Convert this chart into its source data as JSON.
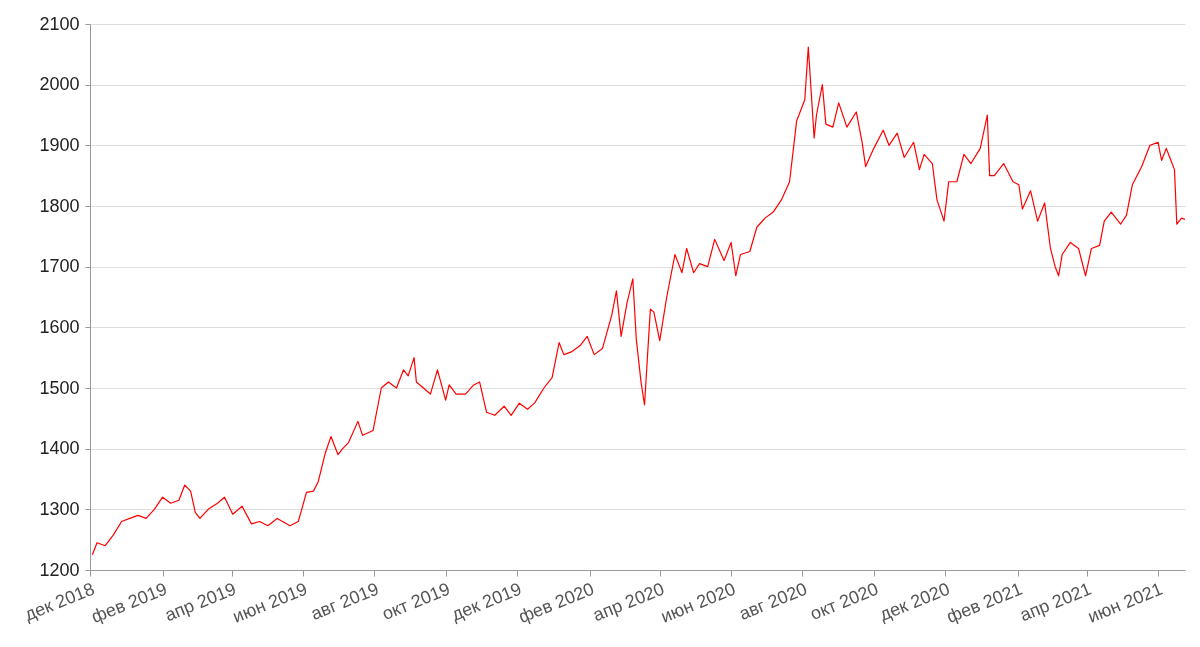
{
  "chart_data": {
    "type": "line",
    "xlim": [
      "2018-12-01",
      "2021-06-24"
    ],
    "ylim": [
      1200,
      2100
    ],
    "yticks": [
      1200,
      1300,
      1400,
      1500,
      1600,
      1700,
      1800,
      1900,
      2000,
      2100
    ],
    "xticks": [
      {
        "value": "2018-12-01",
        "label": "дек 2018"
      },
      {
        "value": "2019-02-01",
        "label": "фев 2019"
      },
      {
        "value": "2019-04-01",
        "label": "апр 2019"
      },
      {
        "value": "2019-06-01",
        "label": "июн 2019"
      },
      {
        "value": "2019-08-01",
        "label": "авг 2019"
      },
      {
        "value": "2019-10-01",
        "label": "окт 2019"
      },
      {
        "value": "2019-12-01",
        "label": "дек 2019"
      },
      {
        "value": "2020-02-01",
        "label": "фев 2020"
      },
      {
        "value": "2020-04-01",
        "label": "апр 2020"
      },
      {
        "value": "2020-06-01",
        "label": "июн 2020"
      },
      {
        "value": "2020-08-01",
        "label": "авг 2020"
      },
      {
        "value": "2020-10-01",
        "label": "окт 2020"
      },
      {
        "value": "2020-12-01",
        "label": "дек 2020"
      },
      {
        "value": "2021-02-01",
        "label": "фев 2021"
      },
      {
        "value": "2021-04-01",
        "label": "апр 2021"
      },
      {
        "value": "2021-06-01",
        "label": "июн 2021"
      }
    ],
    "grid": "y",
    "marker": "none",
    "line_style": "solid",
    "x": [
      "2018-12-03",
      "2018-12-07",
      "2018-12-14",
      "2018-12-21",
      "2018-12-28",
      "2019-01-04",
      "2019-01-11",
      "2019-01-18",
      "2019-01-25",
      "2019-02-01",
      "2019-02-08",
      "2019-02-15",
      "2019-02-20",
      "2019-02-25",
      "2019-03-01",
      "2019-03-05",
      "2019-03-12",
      "2019-03-20",
      "2019-03-26",
      "2019-04-02",
      "2019-04-10",
      "2019-04-18",
      "2019-04-25",
      "2019-05-02",
      "2019-05-10",
      "2019-05-21",
      "2019-05-28",
      "2019-05-31",
      "2019-06-04",
      "2019-06-10",
      "2019-06-14",
      "2019-06-20",
      "2019-06-25",
      "2019-07-01",
      "2019-07-05",
      "2019-07-10",
      "2019-07-18",
      "2019-07-22",
      "2019-07-31",
      "2019-08-07",
      "2019-08-13",
      "2019-08-20",
      "2019-08-26",
      "2019-08-30",
      "2019-09-04",
      "2019-09-06",
      "2019-09-12",
      "2019-09-18",
      "2019-09-24",
      "2019-10-01",
      "2019-10-04",
      "2019-10-10",
      "2019-10-18",
      "2019-10-25",
      "2019-10-30",
      "2019-11-05",
      "2019-11-12",
      "2019-11-20",
      "2019-11-26",
      "2019-12-03",
      "2019-12-10",
      "2019-12-16",
      "2019-12-24",
      "2019-12-31",
      "2020-01-06",
      "2020-01-10",
      "2020-01-17",
      "2020-01-24",
      "2020-01-30",
      "2020-02-05",
      "2020-02-12",
      "2020-02-20",
      "2020-02-24",
      "2020-02-28",
      "2020-03-04",
      "2020-03-09",
      "2020-03-12",
      "2020-03-16",
      "2020-03-19",
      "2020-03-24",
      "2020-03-27",
      "2020-04-01",
      "2020-04-07",
      "2020-04-14",
      "2020-04-20",
      "2020-04-24",
      "2020-04-30",
      "2020-05-05",
      "2020-05-12",
      "2020-05-18",
      "2020-05-26",
      "2020-06-01",
      "2020-06-05",
      "2020-06-09",
      "2020-06-17",
      "2020-06-23",
      "2020-06-30",
      "2020-07-07",
      "2020-07-14",
      "2020-07-21",
      "2020-07-27",
      "2020-08-03",
      "2020-08-06",
      "2020-08-11",
      "2020-08-13",
      "2020-08-18",
      "2020-08-21",
      "2020-08-27",
      "2020-09-01",
      "2020-09-08",
      "2020-09-16",
      "2020-09-21",
      "2020-09-24",
      "2020-10-01",
      "2020-10-09",
      "2020-10-14",
      "2020-10-21",
      "2020-10-27",
      "2020-11-04",
      "2020-11-09",
      "2020-11-13",
      "2020-11-20",
      "2020-11-24",
      "2020-11-30",
      "2020-12-04",
      "2020-12-11",
      "2020-12-17",
      "2020-12-23",
      "2020-12-31",
      "2021-01-06",
      "2021-01-08",
      "2021-01-12",
      "2021-01-20",
      "2021-01-28",
      "2021-02-02",
      "2021-02-05",
      "2021-02-12",
      "2021-02-18",
      "2021-02-24",
      "2021-03-01",
      "2021-03-05",
      "2021-03-08",
      "2021-03-11",
      "2021-03-18",
      "2021-03-25",
      "2021-03-31",
      "2021-04-05",
      "2021-04-12",
      "2021-04-16",
      "2021-04-22",
      "2021-04-30",
      "2021-05-05",
      "2021-05-10",
      "2021-05-18",
      "2021-05-25",
      "2021-06-01",
      "2021-06-04",
      "2021-06-08",
      "2021-06-11",
      "2021-06-15",
      "2021-06-17",
      "2021-06-21",
      "2021-06-24"
    ],
    "series": [
      {
        "color": "#ff0000",
        "values": [
          1225,
          1245,
          1240,
          1258,
          1280,
          1285,
          1290,
          1285,
          1300,
          1320,
          1310,
          1315,
          1340,
          1330,
          1295,
          1285,
          1300,
          1310,
          1320,
          1292,
          1305,
          1276,
          1280,
          1273,
          1285,
          1273,
          1280,
          1300,
          1328,
          1330,
          1345,
          1392,
          1420,
          1390,
          1400,
          1410,
          1445,
          1422,
          1430,
          1500,
          1510,
          1500,
          1530,
          1520,
          1550,
          1510,
          1500,
          1490,
          1530,
          1480,
          1505,
          1490,
          1490,
          1505,
          1510,
          1460,
          1455,
          1470,
          1455,
          1475,
          1465,
          1475,
          1500,
          1517,
          1575,
          1555,
          1560,
          1570,
          1585,
          1555,
          1565,
          1620,
          1660,
          1585,
          1640,
          1680,
          1580,
          1510,
          1472,
          1630,
          1625,
          1578,
          1650,
          1720,
          1690,
          1730,
          1690,
          1705,
          1700,
          1745,
          1710,
          1740,
          1685,
          1720,
          1725,
          1765,
          1780,
          1790,
          1810,
          1840,
          1940,
          1975,
          2062,
          1912,
          1950,
          2000,
          1935,
          1930,
          1970,
          1930,
          1955,
          1905,
          1865,
          1895,
          1925,
          1900,
          1920,
          1880,
          1905,
          1860,
          1885,
          1870,
          1810,
          1775,
          1840,
          1840,
          1885,
          1870,
          1895,
          1950,
          1850,
          1850,
          1870,
          1840,
          1835,
          1795,
          1825,
          1775,
          1805,
          1730,
          1700,
          1685,
          1720,
          1740,
          1730,
          1685,
          1730,
          1735,
          1775,
          1790,
          1770,
          1785,
          1835,
          1865,
          1900,
          1905,
          1875,
          1895,
          1880,
          1860,
          1770,
          1780,
          1778
        ]
      }
    ]
  }
}
